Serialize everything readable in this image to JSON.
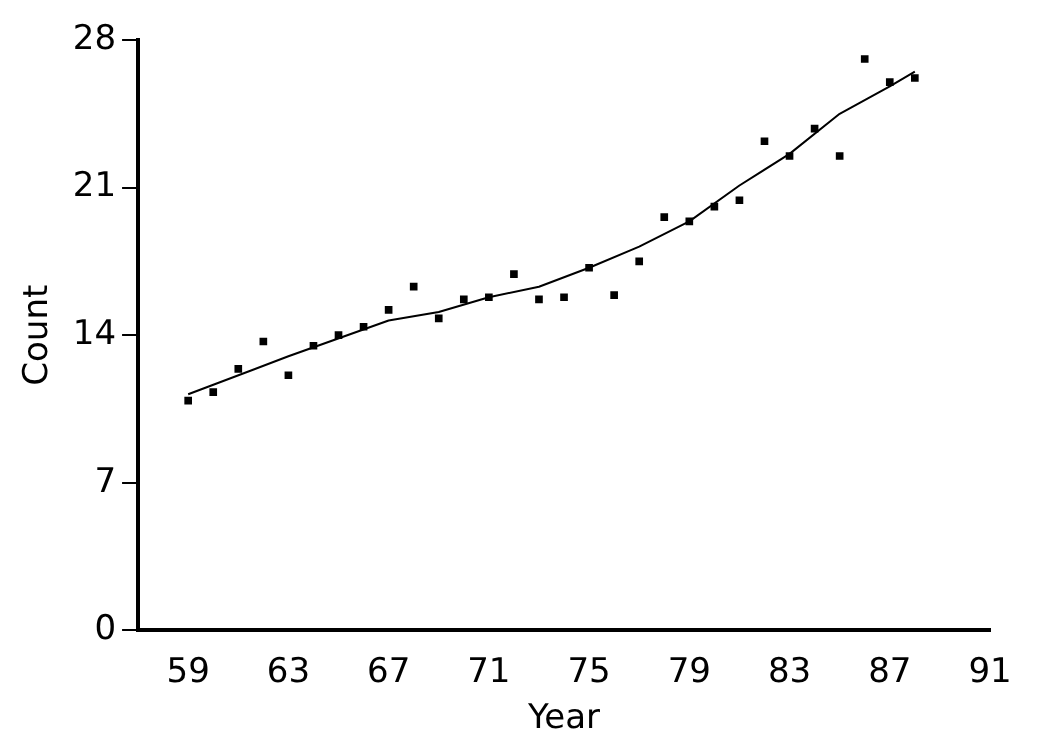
{
  "chart_data": {
    "type": "scatter",
    "xlabel": "Year",
    "ylabel": "Count",
    "xlim": [
      57,
      91
    ],
    "xticks": [
      59,
      63,
      67,
      71,
      75,
      79,
      83,
      87,
      91
    ],
    "ylim": [
      0,
      28
    ],
    "yticks": [
      0,
      7,
      14,
      21,
      28
    ],
    "grid": false,
    "legend": false,
    "series": [
      {
        "color": "#000000",
        "marker": "square",
        "x": [
          59,
          60,
          61,
          62,
          63,
          64,
          65,
          66,
          67,
          68,
          69,
          70,
          71,
          72,
          73,
          74,
          75,
          76,
          77,
          78,
          79,
          80,
          81,
          82,
          83,
          84,
          85,
          86,
          87,
          88
        ],
        "values": [
          10.9,
          11.3,
          12.4,
          13.7,
          12.1,
          13.5,
          14.0,
          14.4,
          15.2,
          16.3,
          14.8,
          15.7,
          15.8,
          16.9,
          15.7,
          15.8,
          17.2,
          15.9,
          17.5,
          19.6,
          19.4,
          20.1,
          20.4,
          23.2,
          22.5,
          23.8,
          22.5,
          27.1,
          26.0,
          26.2
        ]
      },
      {
        "type": "line",
        "color": "#000000",
        "marker": "none",
        "line_style": "solid",
        "x": [
          59,
          63,
          67,
          69,
          71,
          73,
          75,
          77,
          79,
          81,
          83,
          85,
          87,
          88
        ],
        "values": [
          11.2,
          13.0,
          14.7,
          15.1,
          15.8,
          16.3,
          17.2,
          18.2,
          19.4,
          21.1,
          22.6,
          24.5,
          25.8,
          26.5
        ]
      }
    ]
  }
}
